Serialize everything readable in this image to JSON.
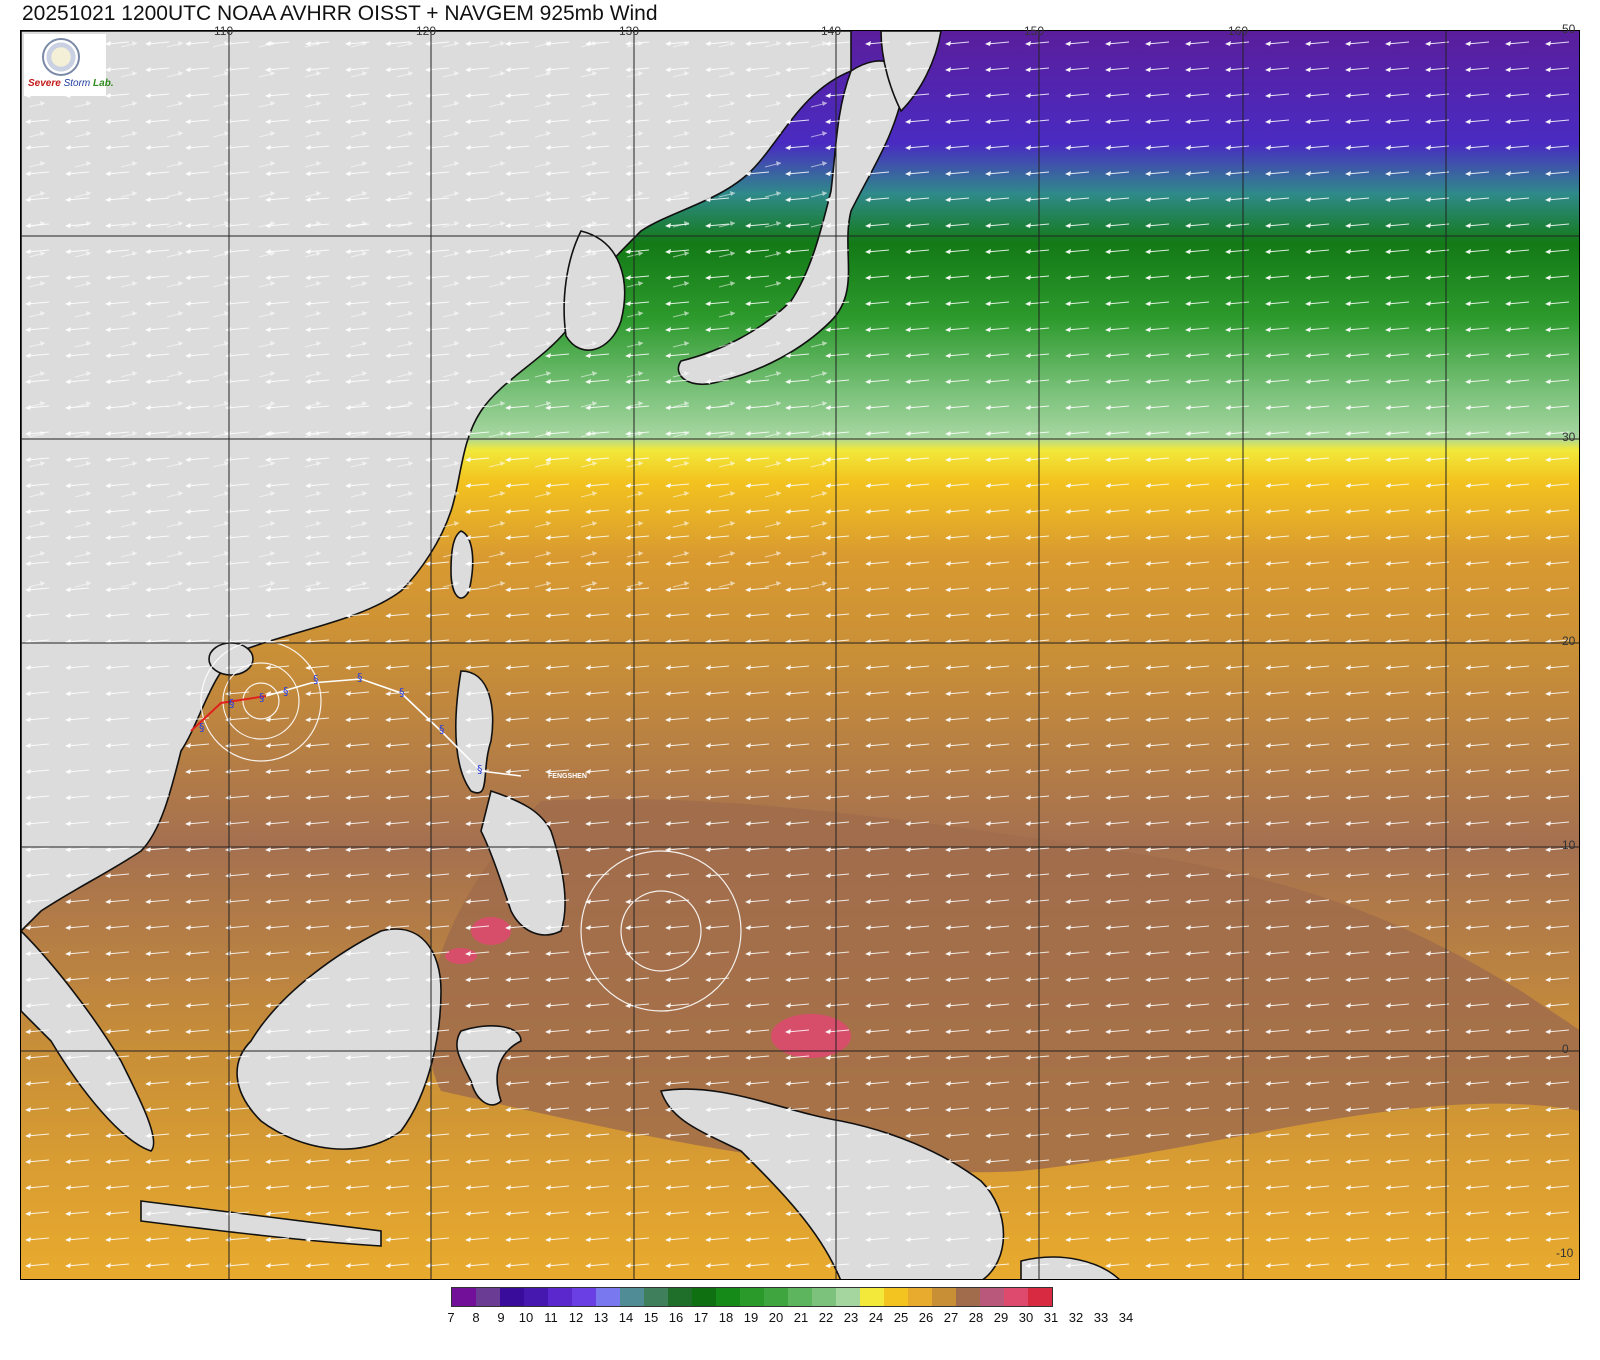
{
  "title": "20251021 1200UTC NOAA AVHRR OISST + NAVGEM 925mb Wind",
  "logo": {
    "line1": "Severe",
    "line2": "Storm",
    "line3": "Lab."
  },
  "map": {
    "lon_labels": [
      "110",
      "120",
      "130",
      "140",
      "150",
      "160"
    ],
    "lat_labels": [
      "50",
      "30",
      "20",
      "10",
      "0",
      "-10"
    ],
    "storm_name": "FENGSHEN",
    "storm_marker": "§"
  },
  "colorbar": {
    "ticks": [
      "7",
      "8",
      "9",
      "10",
      "11",
      "12",
      "13",
      "14",
      "15",
      "16",
      "17",
      "18",
      "19",
      "20",
      "21",
      "22",
      "23",
      "24",
      "25",
      "26",
      "27",
      "28",
      "29",
      "30",
      "31",
      "32",
      "33",
      "34"
    ],
    "colors": [
      "#73109a",
      "#6b3c93",
      "#3a0c9c",
      "#4718b0",
      "#5a28cc",
      "#6a40e4",
      "#7a78ee",
      "#4f8c96",
      "#3f7f5c",
      "#1f6e2a",
      "#0f7012",
      "#168a18",
      "#2a9a2a",
      "#3fa63f",
      "#5db55d",
      "#7cc27c",
      "#a6d6a0",
      "#f2e93a",
      "#f3c31f",
      "#e9ab2d",
      "#c98f37",
      "#a06c4b",
      "#b9587a",
      "#dd4a6e",
      "#d82a40"
    ]
  }
}
